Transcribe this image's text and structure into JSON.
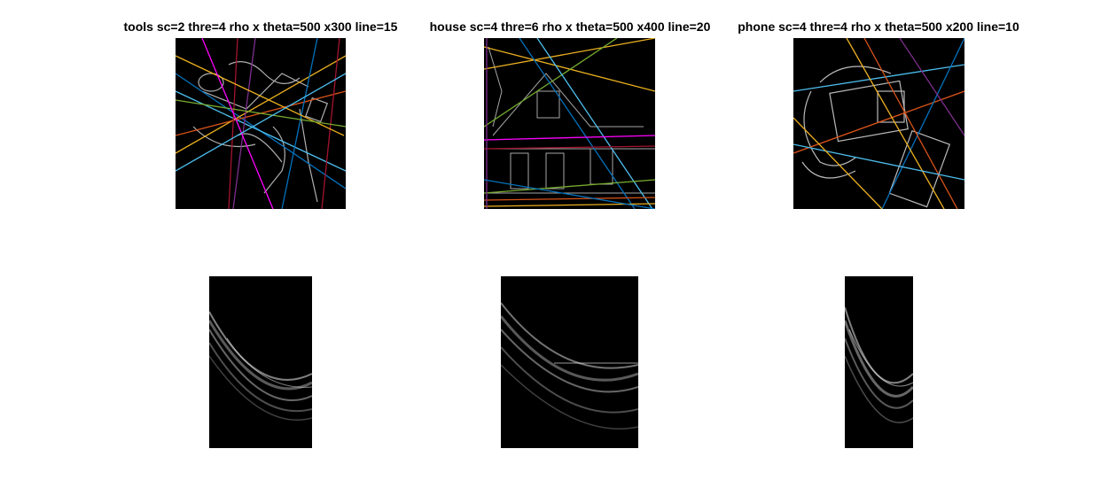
{
  "figure": {
    "titles": [
      "tools sc=2 thre=4 rho x theta=500 x300 line=15",
      "house sc=4 thre=6 rho x theta=500 x400 line=20",
      "phone sc=4 thre=4 rho x theta=500 x200 line=10"
    ],
    "line_colors": [
      "#0072bd",
      "#d95319",
      "#edb120",
      "#7e2f8e",
      "#77ac30",
      "#4dbeee",
      "#a2142f",
      "#ff00ff"
    ]
  }
}
